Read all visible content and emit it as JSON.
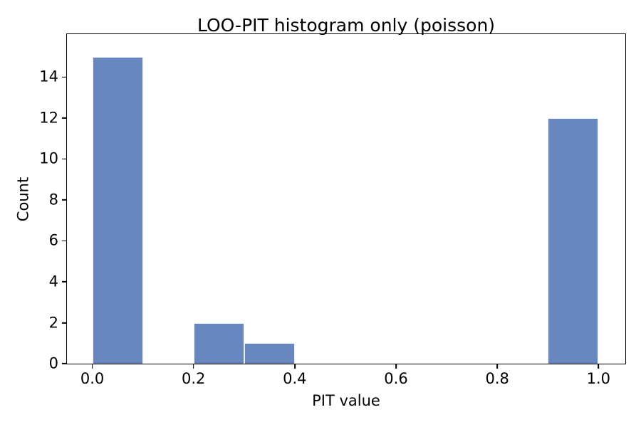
{
  "chart_data": {
    "type": "bar",
    "subtype": "histogram",
    "title": "LOO-PIT histogram only (poisson)",
    "xlabel": "PIT value",
    "ylabel": "Count",
    "bins": [
      [
        0.0,
        0.1
      ],
      [
        0.2,
        0.3
      ],
      [
        0.3,
        0.4
      ],
      [
        0.9,
        1.0
      ]
    ],
    "counts": [
      15,
      2,
      1,
      12
    ],
    "bin_width": 0.1,
    "empty_bins": [
      [
        0.1,
        0.2
      ],
      [
        0.4,
        0.9
      ]
    ],
    "total_observations": 30,
    "xlim": [
      -0.05,
      1.053
    ],
    "ylim": [
      0,
      16.1
    ],
    "x_ticks": [
      0.0,
      0.2,
      0.4,
      0.6,
      0.8,
      1.0
    ],
    "x_tick_labels": [
      "0.0",
      "0.2",
      "0.4",
      "0.6",
      "0.8",
      "1.0"
    ],
    "y_ticks": [
      0,
      2,
      4,
      6,
      8,
      10,
      12,
      14
    ],
    "y_tick_labels": [
      "0",
      "2",
      "4",
      "6",
      "8",
      "10",
      "12",
      "14"
    ],
    "bar_color": "#6787be",
    "bar_edge_color": "#e9eff8",
    "axis_color": "#000000",
    "background_color": "#ffffff",
    "grid": false,
    "legend": null
  }
}
